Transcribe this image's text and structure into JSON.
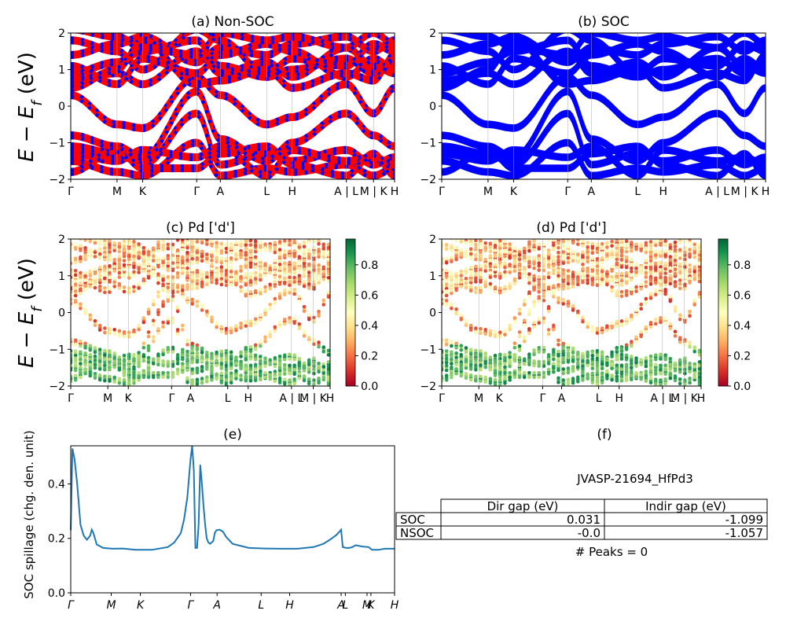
{
  "figure": {
    "ylabel_energy": "E − E",
    "ylabel_energy_sub": "f",
    "ylabel_energy_unit": " (eV)",
    "colorbar_ticks": [
      "0.0",
      "0.2",
      "0.4",
      "0.6",
      "0.8"
    ]
  },
  "chart_data": [
    {
      "type": "line",
      "panel": "a",
      "title": "(a) Non-SOC",
      "ylim": [
        -2,
        2
      ],
      "yticks": [
        -2,
        -1,
        0,
        1,
        2
      ],
      "kpath_labels": [
        "Γ",
        "M",
        "K",
        "Γ",
        "A",
        "L",
        "H",
        "A | L",
        "M | K",
        "H"
      ],
      "kpath_positions": [
        0,
        0.143,
        0.222,
        0.389,
        0.462,
        0.605,
        0.684,
        0.851,
        0.935,
        1.0
      ],
      "colors": [
        "#ff0000",
        "#0000ff"
      ],
      "description_bands": [
        {
          "name": "band",
          "k": [
            0,
            0.143,
            0.222,
            0.389,
            0.462,
            0.605,
            0.684,
            0.851,
            0.935,
            1.0
          ],
          "e": [
            0.3,
            -0.5,
            -0.6,
            0.8,
            0.3,
            -0.5,
            -0.3,
            0.6,
            -0.2,
            0.5
          ]
        },
        {
          "name": "band",
          "k": [
            0,
            0.143,
            0.222,
            0.389,
            0.462,
            0.605,
            0.684,
            0.851,
            0.935,
            1.0
          ],
          "e": [
            -1.1,
            -1.3,
            -1.6,
            -0.2,
            -1.6,
            -1.3,
            -1.5,
            -1.2,
            -1.6,
            -1.4
          ]
        },
        {
          "name": "band",
          "k": [
            0,
            0.143,
            0.222,
            0.389,
            0.462,
            0.605,
            0.684,
            0.851,
            0.935,
            1.0
          ],
          "e": [
            -1.5,
            -1.8,
            -1.9,
            -1.0,
            -1.9,
            -1.7,
            -1.8,
            -1.6,
            -1.9,
            -1.7
          ]
        },
        {
          "name": "band",
          "k": [
            0,
            0.143,
            0.222,
            0.389,
            0.462,
            0.605,
            0.684,
            0.851,
            0.935,
            1.0
          ],
          "e": [
            0.9,
            1.2,
            1.5,
            1.8,
            1.1,
            0.8,
            1.0,
            1.3,
            0.9,
            1.2
          ]
        },
        {
          "name": "band",
          "k": [
            0,
            0.143,
            0.222,
            0.389,
            0.462,
            0.605,
            0.684,
            0.851,
            0.935,
            1.0
          ],
          "e": [
            1.4,
            1.7,
            1.9,
            1.2,
            1.6,
            1.4,
            1.7,
            1.9,
            1.5,
            1.8
          ]
        }
      ]
    },
    {
      "type": "line",
      "panel": "b",
      "title": "(b) SOC",
      "ylim": [
        -2,
        2
      ],
      "yticks": [
        -2,
        -1,
        0,
        1,
        2
      ],
      "kpath_labels": [
        "Γ",
        "M",
        "K",
        "Γ",
        "A",
        "L",
        "H",
        "A | L",
        "M | K",
        "H"
      ],
      "kpath_positions": [
        0,
        0.143,
        0.222,
        0.389,
        0.462,
        0.605,
        0.684,
        0.851,
        0.935,
        1.0
      ],
      "colors": [
        "#0000ff"
      ]
    },
    {
      "type": "scatter",
      "panel": "c",
      "title": "(c)  Pd ['d']",
      "ylim": [
        -2,
        2
      ],
      "yticks": [
        -2,
        -1,
        0,
        1,
        2
      ],
      "kpath_labels": [
        "Γ",
        "M",
        "K",
        "Γ",
        "A",
        "L",
        "H",
        "A | L",
        "M | K",
        "H"
      ],
      "kpath_positions": [
        0,
        0.143,
        0.222,
        0.389,
        0.462,
        0.605,
        0.684,
        0.851,
        0.935,
        1.0
      ],
      "colormap": "RdYlGn",
      "clim": [
        0.0,
        0.97
      ]
    },
    {
      "type": "scatter",
      "panel": "d",
      "title": "(d) Pd ['d']",
      "ylim": [
        -2,
        2
      ],
      "yticks": [
        -2,
        -1,
        0,
        1,
        2
      ],
      "kpath_labels": [
        "Γ",
        "M",
        "K",
        "Γ",
        "A",
        "L",
        "H",
        "A | L",
        "M | K",
        "H"
      ],
      "kpath_positions": [
        0,
        0.143,
        0.222,
        0.389,
        0.462,
        0.605,
        0.684,
        0.851,
        0.935,
        1.0
      ],
      "colormap": "RdYlGn",
      "clim": [
        0.0,
        0.97
      ]
    },
    {
      "type": "line",
      "panel": "e",
      "title": "(e)",
      "ylabel": "SOC spillage (chg. den. unit)",
      "ylim": [
        0.0,
        0.54
      ],
      "yticks": [
        "0.0",
        "0.2",
        "0.4"
      ],
      "xtick_labels": [
        "Γ",
        "M",
        "K",
        "Γ",
        "A",
        "L",
        "H",
        "A",
        "L",
        "M",
        "K",
        "H"
      ],
      "xtick_positions": [
        0,
        0.125,
        0.215,
        0.37,
        0.452,
        0.588,
        0.676,
        0.835,
        0.848,
        0.915,
        0.927,
        1.0
      ],
      "series": [
        {
          "color": "#1f77b4",
          "x": [
            0,
            0.005,
            0.012,
            0.02,
            0.03,
            0.04,
            0.05,
            0.06,
            0.065,
            0.07,
            0.08,
            0.1,
            0.13,
            0.16,
            0.2,
            0.25,
            0.3,
            0.32,
            0.34,
            0.35,
            0.36,
            0.37,
            0.375,
            0.38,
            0.385,
            0.39,
            0.395,
            0.4,
            0.405,
            0.41,
            0.415,
            0.42,
            0.425,
            0.43,
            0.435,
            0.44,
            0.445,
            0.45,
            0.46,
            0.47,
            0.48,
            0.5,
            0.55,
            0.6,
            0.65,
            0.7,
            0.75,
            0.78,
            0.8,
            0.82,
            0.83,
            0.835,
            0.84,
            0.85,
            0.86,
            0.87,
            0.88,
            0.9,
            0.92,
            0.93,
            0.95,
            0.97,
            0.98,
            1.0
          ],
          "y": [
            0.23,
            0.53,
            0.49,
            0.4,
            0.25,
            0.21,
            0.195,
            0.21,
            0.232,
            0.22,
            0.178,
            0.165,
            0.162,
            0.163,
            0.158,
            0.158,
            0.168,
            0.185,
            0.22,
            0.27,
            0.35,
            0.49,
            0.54,
            0.45,
            0.165,
            0.165,
            0.25,
            0.47,
            0.4,
            0.32,
            0.25,
            0.2,
            0.185,
            0.18,
            0.185,
            0.19,
            0.22,
            0.23,
            0.232,
            0.225,
            0.205,
            0.18,
            0.165,
            0.163,
            0.162,
            0.162,
            0.168,
            0.18,
            0.195,
            0.212,
            0.225,
            0.232,
            0.168,
            0.165,
            0.165,
            0.168,
            0.175,
            0.17,
            0.168,
            0.158,
            0.158,
            0.162,
            0.162,
            0.162
          ]
        }
      ]
    }
  ],
  "table_panel": {
    "title": "(f)",
    "material": "JVASP-21694_HfPd3",
    "columns": [
      "",
      "Dir gap (eV)",
      "Indir gap (eV)"
    ],
    "rows": [
      {
        "label": "SOC",
        "dir": "0.031",
        "indir": "-1.099"
      },
      {
        "label": "NSOC",
        "dir": "-0.0",
        "indir": "-1.057"
      }
    ],
    "peaks": "# Peaks = 0"
  }
}
